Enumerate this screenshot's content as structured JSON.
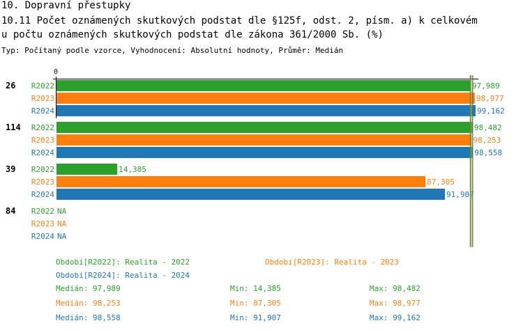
{
  "header": {
    "line1": "10. Dopravní přestupky",
    "line2": "10.11 Počet oznámených skutkových podstat dle §125f, odst. 2, písm. a) k celkovém",
    "line3": "u počtu oznámených skutkových podstat dle zákona 361/2000 Sb. (%)",
    "subtitle": "Typ: Počítaný podle vzorce, Vyhodnocení: Absolutní hodnoty, Průměr: Medián"
  },
  "chart_data": {
    "type": "bar",
    "orientation": "horizontal",
    "x_tick_labels": [
      "0"
    ],
    "xlim": [
      0,
      100
    ],
    "categories": [
      "26",
      "114",
      "39",
      "84"
    ],
    "series": [
      {
        "name": "R2022",
        "color": "#2ca02c",
        "values": [
          97.989,
          98.482,
          14.385,
          null
        ],
        "labels": [
          "97,989",
          "98,482",
          "14,385",
          "NA"
        ]
      },
      {
        "name": "R2023",
        "color": "#ff7f0e",
        "values": [
          98.977,
          98.253,
          87.305,
          null
        ],
        "labels": [
          "98,977",
          "98,253",
          "87,305",
          "NA"
        ]
      },
      {
        "name": "R2024",
        "color": "#1f77b4",
        "values": [
          99.162,
          98.558,
          91.907,
          null
        ],
        "labels": [
          "99,162",
          "98,558",
          "91,907",
          "NA"
        ]
      }
    ],
    "medians": [
      97.989,
      98.253,
      98.558
    ]
  },
  "legend": [
    "Období[R2022]: Realita - 2022",
    "Období[R2023]: Realita - 2023",
    "Období[R2024]: Realita - 2024"
  ],
  "stats": [
    {
      "median": "Medián: 97,989",
      "min": "Min: 14,385",
      "max": "Max: 98,482"
    },
    {
      "median": "Medián: 98,253",
      "min": "Min: 87,305",
      "max": "Max: 98,977"
    },
    {
      "median": "Medián: 98,558",
      "min": "Min: 91,907",
      "max": "Max: 99,162"
    }
  ]
}
